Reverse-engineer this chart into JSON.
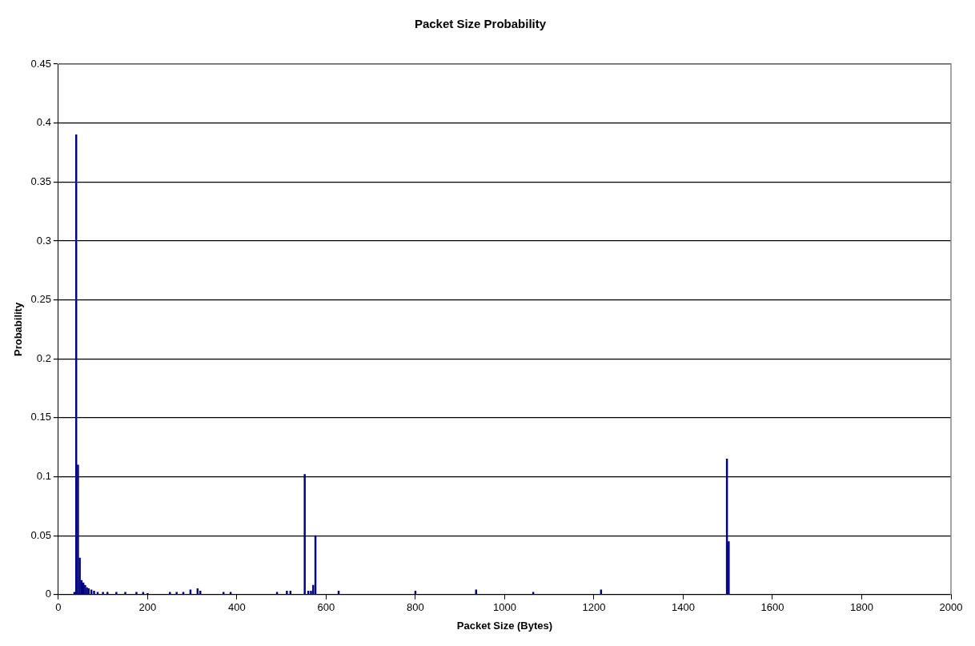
{
  "chart_data": {
    "type": "bar",
    "title": "Packet Size Probability",
    "xlabel": "Packet Size (Bytes)",
    "ylabel": "Probability",
    "x": [
      36,
      40,
      44,
      48,
      52,
      56,
      60,
      64,
      68,
      74,
      80,
      88,
      100,
      110,
      130,
      150,
      175,
      190,
      200,
      250,
      265,
      280,
      296,
      312,
      318,
      370,
      386,
      490,
      512,
      520,
      552,
      560,
      566,
      571,
      576,
      628,
      800,
      936,
      1064,
      1216,
      1498,
      1502
    ],
    "series": [
      {
        "color": "#000080",
        "values": [
          0.002,
          0.39,
          0.11,
          0.031,
          0.012,
          0.01,
          0.008,
          0.006,
          0.005,
          0.004,
          0.003,
          0.002,
          0.002,
          0.002,
          0.002,
          0.002,
          0.002,
          0.002,
          0.001,
          0.002,
          0.002,
          0.002,
          0.004,
          0.005,
          0.003,
          0.002,
          0.002,
          0.002,
          0.003,
          0.003,
          0.102,
          0.003,
          0.003,
          0.008,
          0.05,
          0.003,
          0.003,
          0.004,
          0.002,
          0.004,
          0.115,
          0.045
        ]
      }
    ],
    "xlim": [
      0,
      2000
    ],
    "xticks": [
      0,
      200,
      400,
      600,
      800,
      1000,
      1200,
      1400,
      1600,
      1800,
      2000
    ],
    "ylim": [
      0,
      0.45
    ],
    "yticks": [
      0,
      0.05,
      0.1,
      0.15,
      0.2,
      0.25,
      0.3,
      0.35,
      0.4,
      0.45
    ],
    "grid": "y",
    "legend": false
  }
}
